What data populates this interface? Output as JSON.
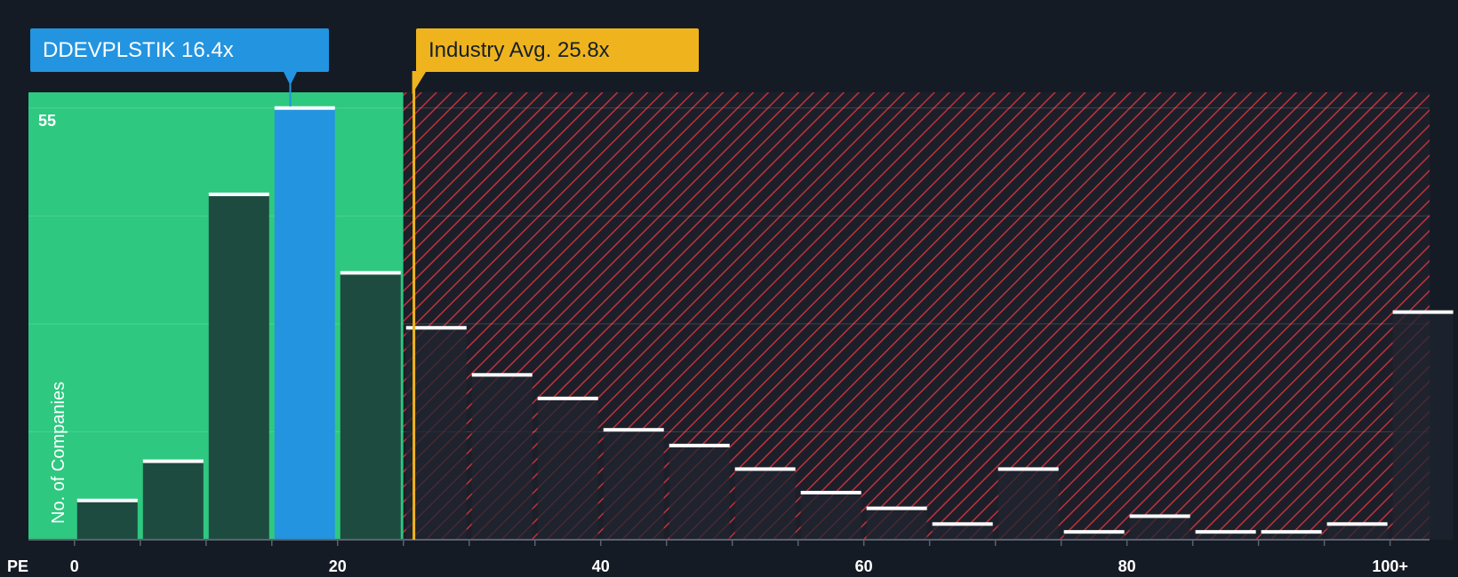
{
  "company": {
    "label": "DDEVPLSTIK 16.4x",
    "color": "#2394e0"
  },
  "industry": {
    "label": "Industry Avg. 25.8x",
    "color": "#efb41d"
  },
  "chart_data": {
    "type": "bar",
    "xlabel": "PE",
    "ylabel": "No. of Companies",
    "ymax_label": "55",
    "ylim": [
      0,
      57
    ],
    "gridlines": [
      0,
      13.75,
      27.5,
      41.25,
      55
    ],
    "bin_width": 5,
    "xlim": [
      -3.5,
      103
    ],
    "x_ticks": [
      {
        "value": 0,
        "label": "0"
      },
      {
        "value": 20,
        "label": "20"
      },
      {
        "value": 40,
        "label": "40"
      },
      {
        "value": 60,
        "label": "60"
      },
      {
        "value": 80,
        "label": "80"
      },
      {
        "value": 100,
        "label": "100+"
      }
    ],
    "bins": [
      {
        "start": 0,
        "count": 5
      },
      {
        "start": 5,
        "count": 10
      },
      {
        "start": 10,
        "count": 44
      },
      {
        "start": 15,
        "count": 55,
        "highlight": true
      },
      {
        "start": 20,
        "count": 34
      },
      {
        "start": 25,
        "count": 27
      },
      {
        "start": 30,
        "count": 21
      },
      {
        "start": 35,
        "count": 18
      },
      {
        "start": 40,
        "count": 14
      },
      {
        "start": 45,
        "count": 12
      },
      {
        "start": 50,
        "count": 9
      },
      {
        "start": 55,
        "count": 6
      },
      {
        "start": 60,
        "count": 4
      },
      {
        "start": 65,
        "count": 2
      },
      {
        "start": 70,
        "count": 9
      },
      {
        "start": 75,
        "count": 1
      },
      {
        "start": 80,
        "count": 3
      },
      {
        "start": 85,
        "count": 1
      },
      {
        "start": 90,
        "count": 1
      },
      {
        "start": 95,
        "count": 2
      },
      {
        "start": 100,
        "count": 29
      }
    ],
    "company_value": 16.4,
    "industry_avg": 25.8,
    "fair_range_end": 25,
    "colors": {
      "fair_zone": "#2ec880",
      "over_zone_line": "#c0323a",
      "bar_fair": "#1e4b40",
      "bar_over": "#1f2530",
      "bar_highlight": "#2394e0",
      "bar_cap": "#ffffff"
    }
  }
}
